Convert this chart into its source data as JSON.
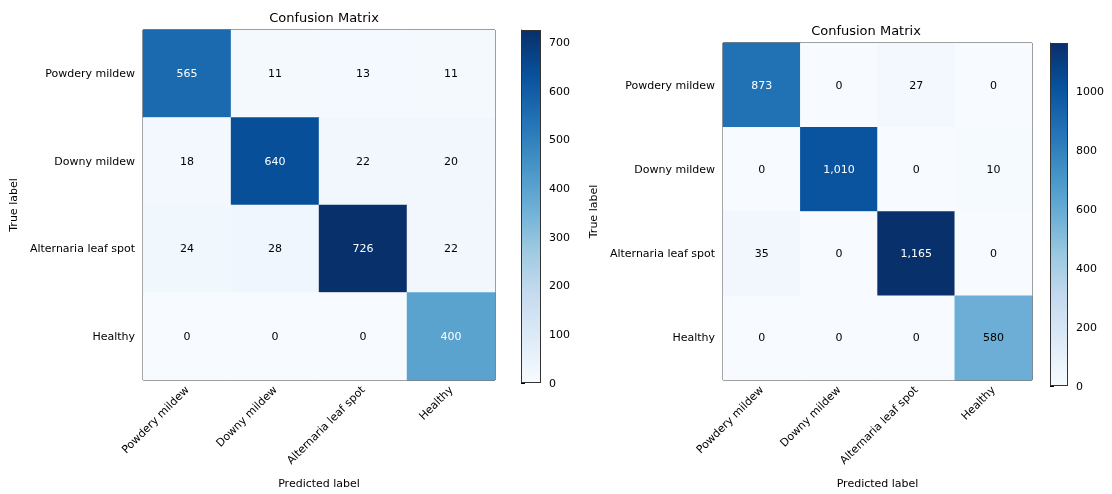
{
  "chart_data": [
    {
      "type": "heatmap",
      "title": "Confusion Matrix",
      "xlabel": "Predicted label",
      "ylabel": "True label",
      "categories": [
        "Powdery mildew",
        "Downy mildew",
        "Alternaria leaf spot",
        "Healthy"
      ],
      "y_categories": [
        "Powdery mildew",
        "Downy mildew",
        "Alternaria leaf spot",
        "Healthy"
      ],
      "cells": [
        [
          565,
          11,
          13,
          11
        ],
        [
          18,
          640,
          22,
          20
        ],
        [
          24,
          28,
          726,
          22
        ],
        [
          0,
          0,
          0,
          400
        ]
      ],
      "data_labels": true,
      "clim": [
        0,
        726
      ],
      "cticks": [
        0,
        100,
        200,
        300,
        400,
        500,
        600,
        700
      ]
    },
    {
      "type": "heatmap",
      "title": "Confusion Matrix",
      "xlabel": "Predicted label",
      "ylabel": "True label",
      "categories": [
        "Powdery mildew",
        "Downy mildew",
        "Alternaria leaf spot",
        "Healthy"
      ],
      "y_categories": [
        "Powdery mildew",
        "Downy mildew",
        "Alternaria leaf spot",
        "Healthy"
      ],
      "cells": [
        [
          873,
          0,
          27,
          0
        ],
        [
          0,
          1010,
          0,
          10
        ],
        [
          35,
          0,
          1165,
          0
        ],
        [
          0,
          0,
          0,
          580
        ]
      ],
      "cell_labels": [
        [
          "873",
          "0",
          "27",
          "0"
        ],
        [
          "0",
          "1,010",
          "0",
          "10"
        ],
        [
          "35",
          "0",
          "1,165",
          "0"
        ],
        [
          "0",
          "0",
          "0",
          "580"
        ]
      ],
      "clim": [
        0,
        1165
      ],
      "cticks": [
        0,
        200,
        400,
        600,
        800,
        1000
      ]
    }
  ]
}
